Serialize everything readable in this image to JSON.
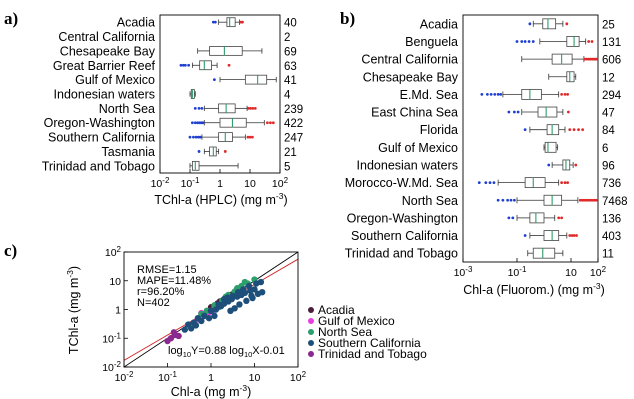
{
  "chart_data": [
    {
      "panel": "a)",
      "type": "boxplot",
      "orientation": "horizontal",
      "xscale": "log",
      "xlim": [
        0.01,
        100
      ],
      "xlabel": "TChl-a (HPLC) (mg m",
      "xlabel_sup": "-3",
      "xlabel_close": ")",
      "xticks": [
        {
          "value": 0.01,
          "base": "10",
          "exp": "-2"
        },
        {
          "value": 0.1,
          "base": "10",
          "exp": "-1"
        },
        {
          "value": 1,
          "base": "1",
          "exp": ""
        },
        {
          "value": 10,
          "base": "10",
          "exp": ""
        },
        {
          "value": 100,
          "base": "10",
          "exp": "2"
        }
      ],
      "categories": [
        {
          "name": "Acadia",
          "count": "40",
          "whisker_low": 0.9,
          "q1": 1.7,
          "median": 2.1,
          "q3": 3.2,
          "whisker_high": 4.5,
          "out_low": [
            0.6,
            0.7
          ],
          "out_high": [
            5.0,
            5.6
          ]
        },
        {
          "name": "Central California",
          "count": "2",
          "whisker_low": null,
          "q1": null,
          "median": null,
          "q3": null,
          "whisker_high": null,
          "out_low": [],
          "out_high": []
        },
        {
          "name": "Chesapeake Bay",
          "count": "69",
          "whisker_low": 0.18,
          "q1": 0.45,
          "median": 1.4,
          "q3": 5.5,
          "whisker_high": 25,
          "out_low": [],
          "out_high": []
        },
        {
          "name": "Great Barrier Reef",
          "count": "63",
          "whisker_low": 0.12,
          "q1": 0.21,
          "median": 0.3,
          "q3": 0.52,
          "whisker_high": 0.8,
          "out_low": [
            0.05,
            0.06,
            0.07,
            0.09
          ],
          "out_high": [
            2.0
          ]
        },
        {
          "name": "Gulf of Mexico",
          "count": "41",
          "whisker_low": 1.0,
          "q1": 7.0,
          "median": 18,
          "q3": 36,
          "whisker_high": 75,
          "out_low": [
            0.65
          ],
          "out_high": []
        },
        {
          "name": "Indonesian waters",
          "count": "4",
          "whisker_low": 0.1,
          "q1": 0.11,
          "median": 0.12,
          "q3": 0.14,
          "whisker_high": 0.15,
          "out_low": [],
          "out_high": []
        },
        {
          "name": "North Sea",
          "count": "239",
          "whisker_low": 0.3,
          "q1": 0.9,
          "median": 1.6,
          "q3": 3.2,
          "whisker_high": 8.0,
          "out_low": [
            0.15,
            0.2,
            0.25
          ],
          "out_high": [
            9,
            10.5,
            12.5,
            15
          ]
        },
        {
          "name": "Oregon-Washington",
          "count": "422",
          "whisker_low": 0.3,
          "q1": 1.0,
          "median": 2.6,
          "q3": 7.5,
          "whisker_high": 30,
          "out_low": [
            0.12,
            0.15,
            0.18,
            0.21,
            0.24,
            0.27
          ],
          "out_high": [
            38,
            48,
            60
          ]
        },
        {
          "name": "Southern California",
          "count": "247",
          "whisker_low": 0.25,
          "q1": 0.9,
          "median": 1.5,
          "q3": 2.6,
          "whisker_high": 7.0,
          "out_low": [
            0.1,
            0.13,
            0.16,
            0.19,
            0.22
          ],
          "out_high": [
            8.5,
            10,
            12
          ]
        },
        {
          "name": "Tasmania",
          "count": "21",
          "whisker_low": 0.3,
          "q1": 0.45,
          "median": 0.6,
          "q3": 0.75,
          "whisker_high": 0.9,
          "out_low": [
            0.2
          ],
          "out_high": [
            1.5
          ]
        },
        {
          "name": "Trinidad and Tobago",
          "count": "5",
          "whisker_low": 0.1,
          "q1": 0.12,
          "median": 0.15,
          "q3": 0.2,
          "whisker_high": 4.0,
          "out_low": [],
          "out_high": []
        }
      ]
    },
    {
      "panel": "b)",
      "type": "boxplot",
      "orientation": "horizontal",
      "xscale": "log",
      "xlim": [
        0.001,
        100
      ],
      "xlabel": "Chl-a (Fluorom.) (mg m",
      "xlabel_sup": "-3",
      "xlabel_close": ")",
      "xticks": [
        {
          "value": 0.001,
          "base": "10",
          "exp": "-3"
        },
        {
          "value": 0.1,
          "base": "10",
          "exp": "-1"
        },
        {
          "value": 10,
          "base": "10",
          "exp": ""
        },
        {
          "value": 100,
          "base": "10",
          "exp": "2"
        }
      ],
      "categories": [
        {
          "name": "Acadia",
          "count": "25",
          "whisker_low": 0.4,
          "q1": 0.9,
          "median": 1.4,
          "q3": 2.7,
          "whisker_high": 5.0,
          "out_low": [
            0.3
          ],
          "out_high": [
            7.0
          ]
        },
        {
          "name": "Benguela",
          "count": "131",
          "whisker_low": 0.7,
          "q1": 7.0,
          "median": 13,
          "q3": 20,
          "whisker_high": 35,
          "out_low": [
            0.1,
            0.15,
            0.2,
            0.28,
            0.4
          ],
          "out_high": [
            45,
            60
          ]
        },
        {
          "name": "Central California",
          "count": "606",
          "whisker_low": 0.15,
          "q1": 2.0,
          "median": 4.5,
          "q3": 11,
          "whisker_high": 30,
          "out_low": [],
          "out_high": [
            32,
            38,
            45,
            52,
            60,
            70,
            80,
            90
          ]
        },
        {
          "name": "Chesapeake Bay",
          "count": "12",
          "whisker_low": 1.5,
          "q1": 7.0,
          "median": 9.0,
          "q3": 13,
          "whisker_high": 15,
          "out_low": [],
          "out_high": []
        },
        {
          "name": "E.Md. Sea",
          "count": "294",
          "whisker_low": 0.03,
          "q1": 0.15,
          "median": 0.3,
          "q3": 0.8,
          "whisker_high": 3.5,
          "out_low": [
            0.005,
            0.008,
            0.011,
            0.015,
            0.02,
            0.025
          ],
          "out_high": [
            4.5,
            6.0,
            7.5
          ]
        },
        {
          "name": "East China Sea",
          "count": "47",
          "whisker_low": 0.15,
          "q1": 0.6,
          "median": 1.2,
          "q3": 3.0,
          "whisker_high": 5.0,
          "out_low": [
            0.05,
            0.08,
            0.11
          ],
          "out_high": [
            8.0
          ]
        },
        {
          "name": "Florida",
          "count": "84",
          "whisker_low": 0.3,
          "q1": 1.3,
          "median": 2.0,
          "q3": 3.5,
          "whisker_high": 6.0,
          "out_low": [
            0.2
          ],
          "out_high": [
            9,
            13,
            19,
            27
          ]
        },
        {
          "name": "Gulf of Mexico",
          "count": "6",
          "whisker_low": 1.0,
          "q1": 1.1,
          "median": 1.4,
          "q3": 2.8,
          "whisker_high": 3.2,
          "out_low": [],
          "out_high": []
        },
        {
          "name": "Indonesian waters",
          "count": "96",
          "whisker_low": 2.0,
          "q1": 5.0,
          "median": 6.5,
          "q3": 9.0,
          "whisker_high": 12,
          "out_low": [
            1.5
          ],
          "out_high": [
            15
          ]
        },
        {
          "name": "Morocco-W.Md. Sea",
          "count": "736",
          "whisker_low": 0.02,
          "q1": 0.2,
          "median": 0.4,
          "q3": 1.1,
          "whisker_high": 3.5,
          "out_low": [
            0.004,
            0.007,
            0.01,
            0.014
          ],
          "out_high": [
            4.5,
            6.0,
            7.5
          ]
        },
        {
          "name": "North Sea",
          "count": "7468",
          "whisker_low": 0.1,
          "q1": 1.0,
          "median": 2.0,
          "q3": 4.5,
          "whisker_high": 18,
          "out_low": [
            0.02,
            0.03,
            0.045,
            0.06,
            0.08
          ],
          "out_high": [
            22,
            26,
            30,
            35,
            40,
            47,
            55,
            65,
            75,
            85
          ]
        },
        {
          "name": "Oregon-Washington",
          "count": "136",
          "whisker_low": 0.1,
          "q1": 0.3,
          "median": 0.5,
          "q3": 1.0,
          "whisker_high": 2.5,
          "out_low": [
            0.05,
            0.07
          ],
          "out_high": [
            3.5,
            4.5
          ]
        },
        {
          "name": "Southern California",
          "count": "403",
          "whisker_low": 0.3,
          "q1": 1.0,
          "median": 2.0,
          "q3": 3.5,
          "whisker_high": 7.0,
          "out_low": [
            0.2
          ],
          "out_high": [
            9,
            11,
            13,
            16
          ]
        },
        {
          "name": "Trinidad and Tobago",
          "count": "11",
          "whisker_low": 0.25,
          "q1": 0.4,
          "median": 0.9,
          "q3": 2.5,
          "whisker_high": 5.0,
          "out_low": [],
          "out_high": []
        }
      ]
    },
    {
      "panel": "c)",
      "type": "scatter",
      "xscale": "log",
      "yscale": "log",
      "xlim": [
        0.01,
        100
      ],
      "ylim": [
        0.01,
        100
      ],
      "xlabel": "Chl-a (mg m",
      "xlabel_sup": "-3",
      "xlabel_close": ")",
      "ylabel": "TChl-a (mg m",
      "ylabel_sup": "-3",
      "ylabel_close": ")",
      "xticks": [
        {
          "value": 0.01,
          "base": "10",
          "exp": "-2"
        },
        {
          "value": 0.1,
          "base": "10",
          "exp": "-1"
        },
        {
          "value": 1,
          "base": "1",
          "exp": ""
        },
        {
          "value": 10,
          "base": "10",
          "exp": ""
        },
        {
          "value": 100,
          "base": "10",
          "exp": "2"
        }
      ],
      "yticks": [
        {
          "value": 0.01,
          "base": "10",
          "exp": "-2"
        },
        {
          "value": 0.1,
          "base": "10",
          "exp": "-1"
        },
        {
          "value": 1,
          "base": "1",
          "exp": ""
        },
        {
          "value": 10,
          "base": "10",
          "exp": ""
        },
        {
          "value": 100,
          "base": "10",
          "exp": "2"
        }
      ],
      "stats": [
        "RMSE=1.15",
        "MAPE=11.48%",
        "r=96.20%",
        "N=402"
      ],
      "equation": {
        "a": "log",
        "a_sub": "10",
        "b": "Y=0.88 log",
        "b_sub": "10",
        "c": "X-0.01"
      },
      "fit": {
        "slope": 0.88,
        "intercept": -0.01
      },
      "legend_position": "right",
      "series": [
        {
          "name": "Acadia",
          "color": "#4a1f3d",
          "points": [
            [
              1.0,
              1.2
            ],
            [
              1.4,
              1.6
            ],
            [
              1.8,
              2.0
            ],
            [
              2.3,
              2.4
            ],
            [
              3.0,
              3.3
            ],
            [
              1.2,
              1.1
            ],
            [
              2.6,
              2.2
            ],
            [
              1.6,
              1.9
            ]
          ]
        },
        {
          "name": "Gulf of Mexico",
          "color": "#e83ee0",
          "points": [
            [
              0.5,
              0.45
            ],
            [
              0.7,
              0.6
            ],
            [
              0.6,
              0.75
            ],
            [
              0.9,
              0.8
            ],
            [
              1.1,
              0.95
            ],
            [
              0.8,
              0.65
            ]
          ]
        },
        {
          "name": "North Sea",
          "color": "#2e9e6a",
          "points": [
            [
              0.8,
              0.9
            ],
            [
              1.2,
              1.4
            ],
            [
              1.8,
              2.0
            ],
            [
              2.5,
              3.2
            ],
            [
              3.5,
              4.2
            ],
            [
              5.0,
              6.5
            ],
            [
              7.0,
              8.0
            ],
            [
              1.5,
              1.2
            ],
            [
              2.2,
              2.8
            ],
            [
              0.6,
              0.7
            ],
            [
              4.0,
              5.5
            ],
            [
              6.0,
              9.0
            ],
            [
              10,
              11
            ]
          ]
        },
        {
          "name": "Southern California",
          "color": "#1d4f7a",
          "points": [
            [
              0.3,
              0.3
            ],
            [
              0.4,
              0.35
            ],
            [
              0.5,
              0.5
            ],
            [
              0.7,
              0.6
            ],
            [
              1.0,
              0.9
            ],
            [
              1.3,
              1.0
            ],
            [
              1.7,
              1.3
            ],
            [
              2.0,
              1.6
            ],
            [
              2.5,
              1.9
            ],
            [
              3.0,
              2.3
            ],
            [
              4.0,
              2.8
            ],
            [
              5.0,
              3.2
            ],
            [
              6.0,
              3.8
            ],
            [
              8.0,
              4.5
            ],
            [
              10,
              5.0
            ],
            [
              12,
              3.5
            ],
            [
              15,
              4.0
            ],
            [
              9.0,
              2.5
            ],
            [
              6.5,
              2.0
            ],
            [
              4.5,
              1.5
            ],
            [
              3.5,
              1.1
            ],
            [
              2.8,
              0.9
            ],
            [
              1.2,
              0.6
            ],
            [
              0.9,
              0.5
            ],
            [
              0.6,
              0.4
            ],
            [
              0.45,
              0.28
            ],
            [
              0.35,
              0.22
            ],
            [
              2.0,
              2.3
            ],
            [
              3.2,
              3.0
            ],
            [
              5.5,
              5.0
            ],
            [
              7.5,
              6.5
            ],
            [
              0.25,
              0.2
            ],
            [
              1.5,
              1.5
            ],
            [
              2.4,
              2.6
            ],
            [
              4.2,
              4.0
            ],
            [
              11,
              8.0
            ],
            [
              14,
              9.0
            ],
            [
              8.5,
              3.0
            ]
          ]
        },
        {
          "name": "Trinidad and Tobago",
          "color": "#8a2a8f",
          "points": [
            [
              0.1,
              0.08
            ],
            [
              0.12,
              0.1
            ],
            [
              0.15,
              0.13
            ],
            [
              0.18,
              0.12
            ],
            [
              0.14,
              0.16
            ]
          ]
        }
      ]
    }
  ]
}
